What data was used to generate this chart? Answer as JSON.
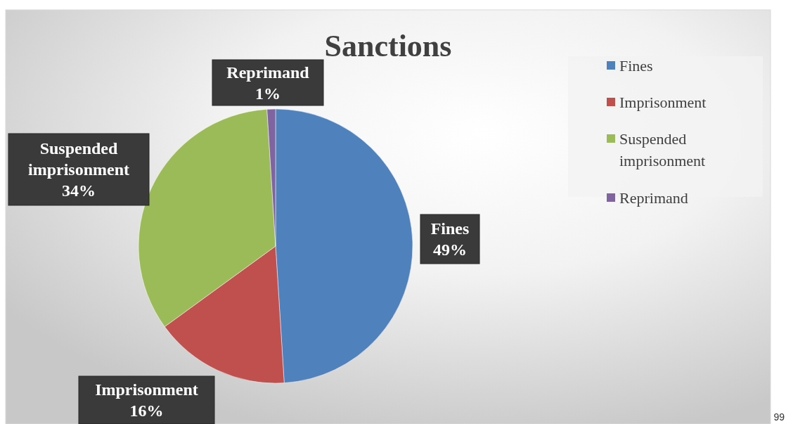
{
  "chart_data": {
    "type": "pie",
    "title": "Sanctions",
    "categories": [
      "Fines",
      "Imprisonment",
      "Suspended imprisonment",
      "Reprimand"
    ],
    "values": [
      49,
      16,
      34,
      1
    ],
    "colors": [
      "#4f81bd",
      "#c0504d",
      "#9bbb59",
      "#8064a2"
    ],
    "value_labels": [
      "49%",
      "16%",
      "34%",
      "1%"
    ],
    "legend": "right",
    "annotations": [
      "99"
    ]
  }
}
